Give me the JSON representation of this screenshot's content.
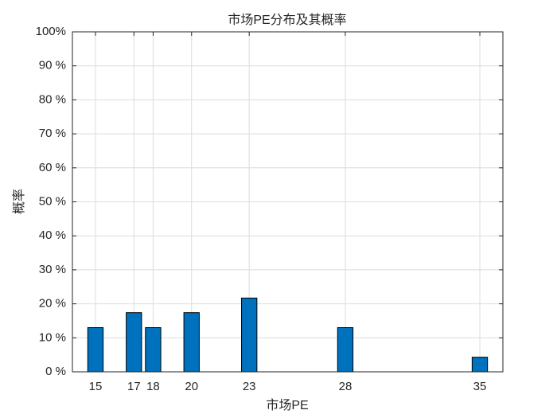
{
  "chart_data": {
    "type": "bar",
    "title": "市场PE分布及其概率",
    "xlabel": "市场PE",
    "ylabel": "概率",
    "x": [
      15,
      17,
      18,
      20,
      23,
      28,
      35
    ],
    "values": [
      13,
      17.4,
      13,
      17.4,
      21.7,
      13,
      4.3
    ],
    "color": "#0072BD",
    "xlim": [
      13.8,
      36.2
    ],
    "xticks": [
      15,
      17,
      18,
      20,
      23,
      28,
      35
    ],
    "ylim": [
      0,
      100
    ],
    "yticks": [
      {
        "value": 0,
        "label": "0 %"
      },
      {
        "value": 10,
        "label": "10 %"
      },
      {
        "value": 20,
        "label": "20 %"
      },
      {
        "value": 30,
        "label": "30 %"
      },
      {
        "value": 40,
        "label": "40 %"
      },
      {
        "value": 50,
        "label": "50 %"
      },
      {
        "value": 60,
        "label": "60 %"
      },
      {
        "value": 70,
        "label": "70 %"
      },
      {
        "value": 80,
        "label": "80 %"
      },
      {
        "value": 90,
        "label": "90 %"
      },
      {
        "value": 100,
        "label": "100%"
      }
    ],
    "grid": true
  }
}
